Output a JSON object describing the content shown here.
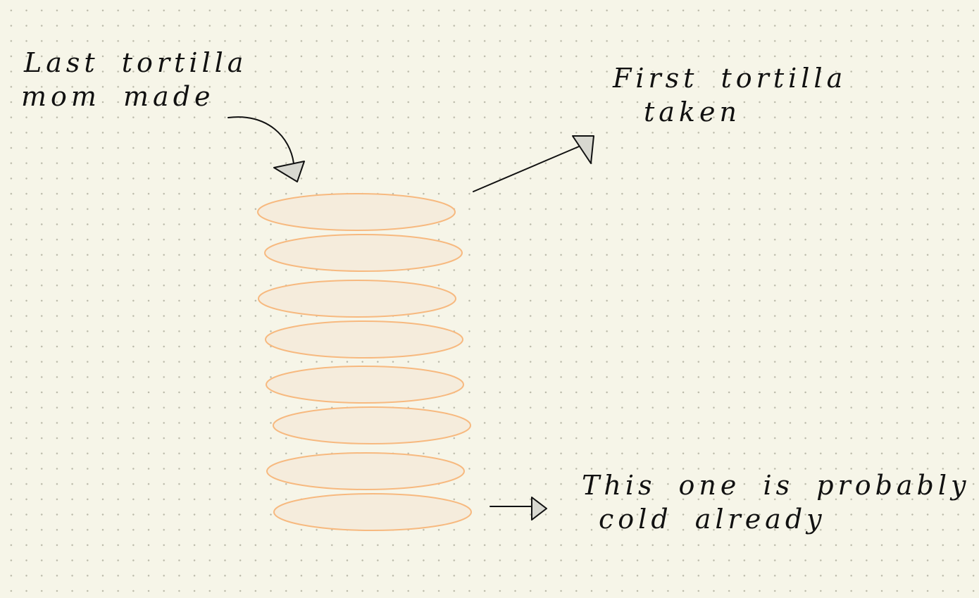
{
  "colors": {
    "background": "#f6f5e8",
    "grid_dot": "#b9b8a8",
    "tortilla_fill": "#f5ecdc",
    "tortilla_stroke": "#f7b97f",
    "ink": "#111111",
    "arrowhead_fill": "#d8d8d0"
  },
  "annotations": {
    "last_tortilla": {
      "line1": "Last tortilla",
      "line2": "mom made"
    },
    "first_tortilla": {
      "line1": "First tortilla",
      "line2": "taken"
    },
    "cold": {
      "line1": "This one is probably",
      "line2": "cold already"
    }
  },
  "stack": {
    "tortilla_count": 8
  }
}
